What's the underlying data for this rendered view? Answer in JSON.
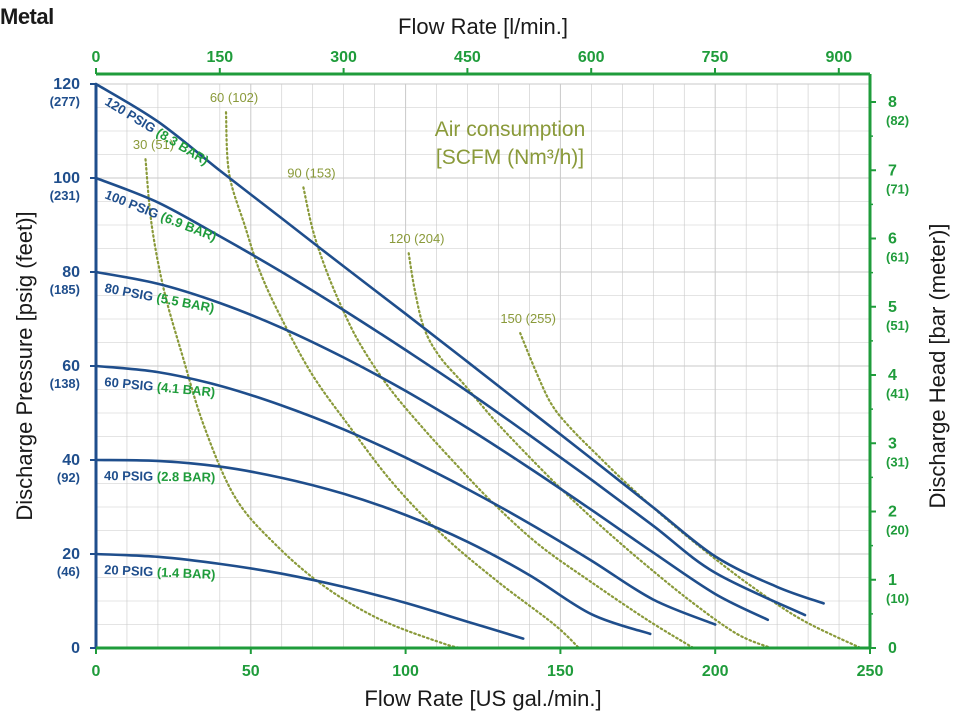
{
  "corner_title": "Metal",
  "colors": {
    "blue": "#1f4e8c",
    "green": "#1f9c3b",
    "olive": "#8a9a3a",
    "grid": "#c9c9c9",
    "text": "#1a1a1a"
  },
  "chart_data": {
    "type": "line",
    "grid": true,
    "axes": {
      "bottom": {
        "label": "Flow Rate [US gal./min.]",
        "range": [
          0,
          250
        ],
        "ticks": [
          {
            "value": 0,
            "label": "0"
          },
          {
            "value": 50,
            "label": "50"
          },
          {
            "value": 100,
            "label": "100"
          },
          {
            "value": 150,
            "label": "150"
          },
          {
            "value": 200,
            "label": "200"
          },
          {
            "value": 250,
            "label": "250"
          }
        ]
      },
      "top": {
        "label": "Flow Rate  [l/min.]",
        "ticks": [
          {
            "value": 0,
            "label": "0"
          },
          {
            "value": 150,
            "label": "150"
          },
          {
            "value": 300,
            "label": "300"
          },
          {
            "value": 450,
            "label": "450"
          },
          {
            "value": 600,
            "label": "600"
          },
          {
            "value": 750,
            "label": "750"
          },
          {
            "value": 900,
            "label": "900"
          }
        ]
      },
      "left": {
        "label": "Discharge Pressure [psig (feet)]",
        "range": [
          0,
          120
        ],
        "ticks": [
          {
            "value": 0,
            "label": "0",
            "sub": ""
          },
          {
            "value": 20,
            "label": "20",
            "sub": "(46)"
          },
          {
            "value": 40,
            "label": "40",
            "sub": "(92)"
          },
          {
            "value": 60,
            "label": "60",
            "sub": "(138)"
          },
          {
            "value": 80,
            "label": "80",
            "sub": "(185)"
          },
          {
            "value": 100,
            "label": "100",
            "sub": "(231)"
          },
          {
            "value": 120,
            "label": "120",
            "sub": "(277)"
          }
        ]
      },
      "right": {
        "label": "Discharge Head [bar (meter)]",
        "ticks": [
          {
            "value": 0,
            "label": "0",
            "sub": ""
          },
          {
            "value": 1,
            "label": "1",
            "sub": "(10)"
          },
          {
            "value": 2,
            "label": "2",
            "sub": "(20)"
          },
          {
            "value": 3,
            "label": "3",
            "sub": "(31)"
          },
          {
            "value": 4,
            "label": "4",
            "sub": "(41)"
          },
          {
            "value": 5,
            "label": "5",
            "sub": "(51)"
          },
          {
            "value": 6,
            "label": "6",
            "sub": "(61)"
          },
          {
            "value": 7,
            "label": "7",
            "sub": "(71)"
          },
          {
            "value": 8,
            "label": "8",
            "sub": "(82)"
          }
        ]
      }
    },
    "series": [
      {
        "label_psig": "120 PSIG",
        "label_bar": "(8.3 BAR)",
        "points": [
          [
            0,
            120
          ],
          [
            20,
            112
          ],
          [
            40,
            101.6
          ],
          [
            60,
            91.4
          ],
          [
            80,
            81.2
          ],
          [
            100,
            71.1
          ],
          [
            120,
            60.9
          ],
          [
            140,
            50.6
          ],
          [
            160,
            40.3
          ],
          [
            180,
            29.9
          ],
          [
            200,
            19.5
          ],
          [
            220,
            13
          ],
          [
            235,
            9.5
          ]
        ]
      },
      {
        "label_psig": "100 PSIG",
        "label_bar": "(6.9 BAR)",
        "points": [
          [
            0,
            100
          ],
          [
            20,
            94.8
          ],
          [
            40,
            87.6
          ],
          [
            60,
            80
          ],
          [
            80,
            71.9
          ],
          [
            100,
            63.4
          ],
          [
            120,
            54.6
          ],
          [
            140,
            45.3
          ],
          [
            160,
            35.8
          ],
          [
            180,
            26
          ],
          [
            200,
            16
          ],
          [
            229,
            7
          ]
        ]
      },
      {
        "label_psig": "80 PSIG",
        "label_bar": "(5.5 BAR)",
        "points": [
          [
            0,
            80
          ],
          [
            20,
            77.5
          ],
          [
            40,
            73.4
          ],
          [
            60,
            68.1
          ],
          [
            80,
            61.8
          ],
          [
            100,
            54.7
          ],
          [
            120,
            46.8
          ],
          [
            140,
            38.3
          ],
          [
            160,
            29.4
          ],
          [
            180,
            20.3
          ],
          [
            200,
            11.5
          ],
          [
            217,
            6
          ]
        ]
      },
      {
        "label_psig": "60 PSIG",
        "label_bar": "(4.1 BAR)",
        "points": [
          [
            0,
            60
          ],
          [
            20,
            58.7
          ],
          [
            40,
            55.8
          ],
          [
            60,
            51.6
          ],
          [
            80,
            46.5
          ],
          [
            100,
            40.5
          ],
          [
            120,
            33.8
          ],
          [
            140,
            26.5
          ],
          [
            160,
            18.6
          ],
          [
            180,
            10.3
          ],
          [
            200,
            5
          ]
        ]
      },
      {
        "label_psig": "40 PSIG",
        "label_bar": "(2.8 BAR)",
        "points": [
          [
            0,
            40
          ],
          [
            20,
            39.8
          ],
          [
            40,
            38.6
          ],
          [
            60,
            36.2
          ],
          [
            80,
            32.8
          ],
          [
            100,
            28.3
          ],
          [
            120,
            22.6
          ],
          [
            140,
            15.5
          ],
          [
            160,
            7.2
          ],
          [
            179,
            3
          ]
        ]
      },
      {
        "label_psig": "20 PSIG",
        "label_bar": "(1.4 BAR)",
        "points": [
          [
            0,
            20
          ],
          [
            20,
            19.4
          ],
          [
            40,
            17.9
          ],
          [
            60,
            15.8
          ],
          [
            80,
            13
          ],
          [
            100,
            9.6
          ],
          [
            120,
            5.6
          ],
          [
            138,
            2
          ]
        ]
      }
    ],
    "air_consumption": {
      "title_line1": "Air consumption",
      "title_line2": "[SCFM (Nm³/h)]",
      "curves": [
        {
          "label": "30 (51)",
          "points": [
            [
              16,
              104
            ],
            [
              18,
              90
            ],
            [
              22,
              76
            ],
            [
              28,
              62
            ],
            [
              35,
              47
            ],
            [
              45,
              32
            ],
            [
              58,
              22
            ],
            [
              74,
              13
            ],
            [
              92,
              6
            ],
            [
              112,
              1
            ],
            [
              118,
              0
            ]
          ]
        },
        {
          "label": "60 (102)",
          "points": [
            [
              42,
              114
            ],
            [
              43,
              101
            ],
            [
              48,
              90
            ],
            [
              53,
              80
            ],
            [
              60,
              70
            ],
            [
              70,
              58
            ],
            [
              82,
              47
            ],
            [
              96,
              35
            ],
            [
              112,
              24
            ],
            [
              130,
              14
            ],
            [
              148,
              5
            ],
            [
              156,
              0
            ]
          ]
        },
        {
          "label": "90 (153)",
          "points": [
            [
              67,
              98
            ],
            [
              70,
              89
            ],
            [
              74,
              81
            ],
            [
              79,
              73
            ],
            [
              85,
              65
            ],
            [
              94,
              56
            ],
            [
              104,
              48
            ],
            [
              115,
              40
            ],
            [
              128,
              31
            ],
            [
              143,
              22
            ],
            [
              160,
              14
            ],
            [
              178,
              6
            ],
            [
              193,
              0
            ]
          ]
        },
        {
          "label": "120 (204)",
          "points": [
            [
              101,
              84
            ],
            [
              103,
              76
            ],
            [
              106,
              68
            ],
            [
              111,
              62
            ],
            [
              119,
              56
            ],
            [
              128,
              49
            ],
            [
              138,
              42
            ],
            [
              150,
              34
            ],
            [
              163,
              26
            ],
            [
              177,
              18
            ],
            [
              192,
              10
            ],
            [
              207,
              3
            ],
            [
              218,
              0
            ]
          ]
        },
        {
          "label": "150 (255)",
          "points": [
            [
              137,
              67
            ],
            [
              142,
              59
            ],
            [
              147,
              52
            ],
            [
              153,
              47
            ],
            [
              162,
              41
            ],
            [
              173,
              34
            ],
            [
              185,
              27
            ],
            [
              198,
              20
            ],
            [
              212,
              13
            ],
            [
              228,
              6
            ],
            [
              247,
              0
            ]
          ]
        }
      ]
    }
  }
}
